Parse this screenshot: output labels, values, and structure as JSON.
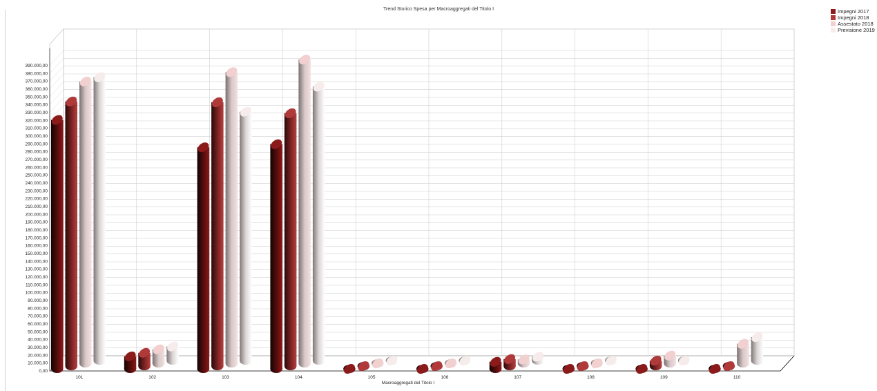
{
  "chart_data": {
    "type": "bar",
    "title": "Trend Storico Spesa per Macroaggregati del Titolo I",
    "xlabel": "Macroaggregati del Titolo I",
    "ylabel": "",
    "ylim": [
      0,
      390000
    ],
    "yticks": [
      "0,00",
      "10.000,00",
      "20.000,00",
      "30.000,00",
      "40.000,00",
      "50.000,00",
      "60.000,00",
      "70.000,00",
      "80.000,00",
      "90.000,00",
      "100.000,00",
      "110.000,00",
      "120.000,00",
      "130.000,00",
      "140.000,00",
      "150.000,00",
      "160.000,00",
      "170.000,00",
      "180.000,00",
      "190.000,00",
      "200.000,00",
      "210.000,00",
      "220.000,00",
      "230.000,00",
      "240.000,00",
      "250.000,00",
      "260.000,00",
      "270.000,00",
      "280.000,00",
      "290.000,00",
      "300.000,00",
      "310.000,00",
      "320.000,00",
      "330.000,00",
      "340.000,00",
      "350.000,00",
      "360.000,00",
      "370.000,00",
      "380.000,00",
      "390.000,00"
    ],
    "categories": [
      "101",
      "102",
      "103",
      "104",
      "105",
      "106",
      "107",
      "108",
      "109",
      "110"
    ],
    "series": [
      {
        "name": "Impegni 2017",
        "color": "#8b1a1a",
        "values": [
          318000,
          16000,
          283000,
          287000,
          0,
          0,
          9000,
          0,
          0,
          0
        ]
      },
      {
        "name": "Impegni 2018",
        "color": "#b03a3a",
        "values": [
          338000,
          17000,
          337000,
          323000,
          0,
          0,
          9000,
          0,
          7000,
          0
        ]
      },
      {
        "name": "Assestato 2018",
        "color": "#f2d0d0",
        "values": [
          360000,
          18000,
          372000,
          388000,
          0,
          0,
          5000,
          0,
          10000,
          25000
        ]
      },
      {
        "name": "Previsione 2019",
        "color": "#f7ecec",
        "values": [
          362000,
          18000,
          318000,
          350000,
          0,
          0,
          5000,
          0,
          0,
          30000
        ]
      }
    ],
    "grid": true,
    "legend_position": "top-right"
  }
}
